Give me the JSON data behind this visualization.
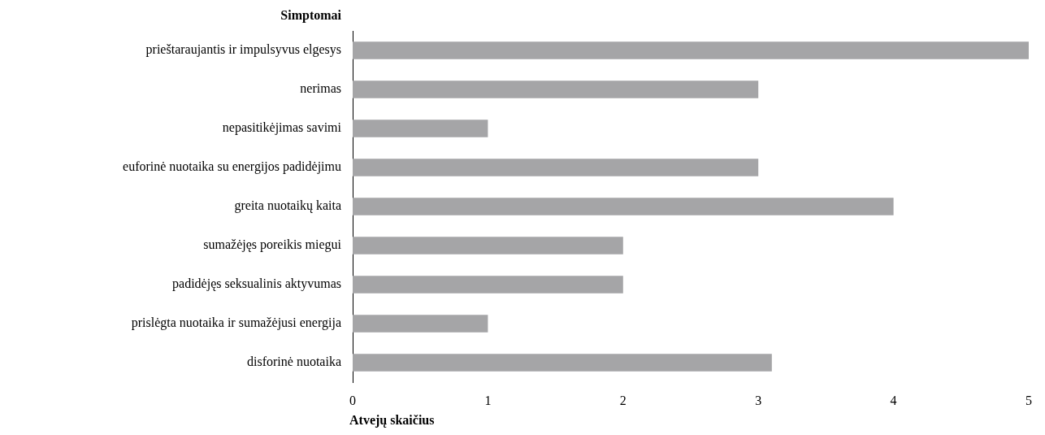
{
  "chart_data": {
    "type": "bar",
    "orientation": "horizontal",
    "ylabel": "Simptomai",
    "xlabel": "Atvejų skaičius",
    "categories": [
      "prieštaraujantis ir impulsyvus elgesys",
      "nerimas",
      "nepasitikėjimas savimi",
      "euforinė nuotaika su energijos padidėjimu",
      "greita nuotaikų kaita",
      "sumažėjęs poreikis miegui",
      "padidėjęs seksualinis aktyvumas",
      "prislėgta nuotaika ir sumažėjusi energija",
      "disforinė nuotaika"
    ],
    "values": [
      5,
      3,
      1,
      3,
      4,
      2,
      2,
      1,
      3.1
    ],
    "color": "#a5a5a7",
    "xlim": [
      0,
      5
    ],
    "xticks": [
      0,
      1,
      2,
      3,
      4,
      5
    ],
    "grid": false,
    "legend": false
  }
}
